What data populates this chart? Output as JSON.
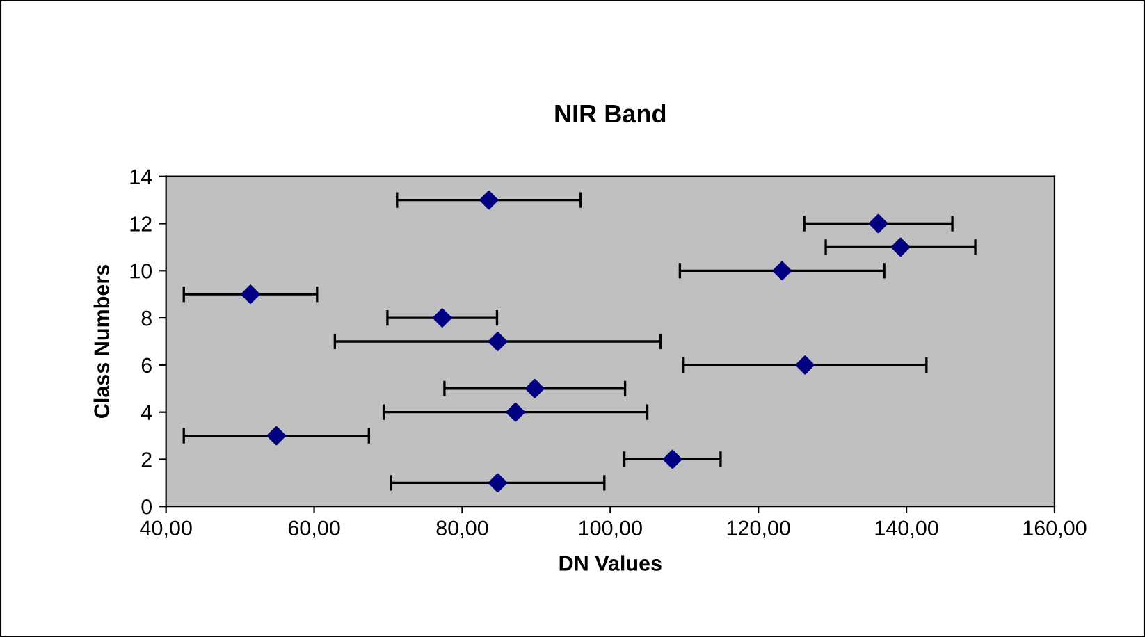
{
  "chart_data": {
    "type": "scatter",
    "title": "NIR Band",
    "xlabel": "DN Values",
    "ylabel": "Class Numbers",
    "x": [
      84.8,
      108.4,
      54.9,
      87.2,
      89.8,
      126.3,
      84.8,
      77.3,
      51.4,
      123.2,
      139.2,
      136.2,
      83.6
    ],
    "series": [
      {
        "color": "#000080",
        "values": [
          1,
          2,
          3,
          4,
          5,
          6,
          7,
          8,
          9,
          10,
          11,
          12,
          13
        ],
        "xerrors": [
          14.4,
          6.5,
          12.5,
          17.8,
          12.2,
          16.4,
          22,
          7.4,
          9,
          13.8,
          10.1,
          10,
          12.4
        ]
      }
    ],
    "xlim": [
      40,
      160
    ],
    "xticks": [
      {
        "value": 40,
        "label": "40,00"
      },
      {
        "value": 60,
        "label": "60,00"
      },
      {
        "value": 80,
        "label": "80,00"
      },
      {
        "value": 100,
        "label": "100,00"
      },
      {
        "value": 120,
        "label": "120,00"
      },
      {
        "value": 140,
        "label": "140,00"
      },
      {
        "value": 160,
        "label": "160,00"
      }
    ],
    "ylim": [
      0,
      14
    ],
    "yticks": [
      0,
      2,
      4,
      6,
      8,
      10,
      12,
      14
    ],
    "marker": "diamond",
    "grid": false,
    "legend": false
  }
}
